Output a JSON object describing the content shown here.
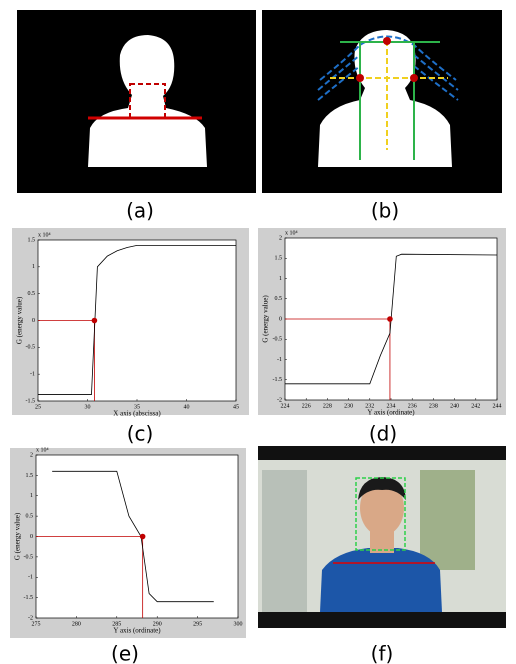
{
  "panel_labels": [
    "(a)",
    "(b)",
    "(c)",
    "(d)",
    "(e)",
    "(f)"
  ],
  "chart_data": [
    {
      "type": "line",
      "x_label": "X axis (abscissa)",
      "y_label": "G (energy value)",
      "exponent_label": "x 10⁴",
      "x": [
        25,
        30,
        30.4,
        31,
        32,
        33,
        34,
        35,
        40,
        45
      ],
      "series": [
        {
          "color": "#000000",
          "values": [
            -1.38,
            -1.38,
            -1.38,
            1.0,
            1.2,
            1.3,
            1.36,
            1.4,
            1.4,
            1.4
          ]
        }
      ],
      "marker": {
        "x": 30.7,
        "y": 0,
        "color": "#c00000"
      },
      "xlim": [
        25,
        45
      ],
      "xticks": [
        25,
        30,
        35,
        40,
        45
      ],
      "ylim": [
        -1.5,
        1.5
      ],
      "yticks": [
        -1.5,
        -1,
        -0.5,
        0,
        0.5,
        1,
        1.5
      ]
    },
    {
      "type": "line",
      "x_label": "Y axis (ordinate)",
      "y_label": "G (energy value)",
      "exponent_label": "x 10⁴",
      "x": [
        224,
        232,
        233,
        233.9,
        234.5,
        235,
        244
      ],
      "series": [
        {
          "color": "#000000",
          "values": [
            -1.6,
            -1.6,
            -0.9,
            -0.35,
            1.55,
            1.6,
            1.58
          ]
        }
      ],
      "marker": {
        "x": 233.9,
        "y": 0,
        "color": "#c00000"
      },
      "xlim": [
        224,
        244
      ],
      "xticks": [
        224,
        226,
        228,
        230,
        232,
        234,
        236,
        238,
        240,
        242,
        244
      ],
      "ylim": [
        -2,
        2
      ],
      "yticks": [
        -2,
        -1.5,
        -1,
        -0.5,
        0,
        0.5,
        1,
        1.5,
        2
      ]
    },
    {
      "type": "line",
      "x_label": "Y axis (ordinate)",
      "y_label": "G (energy value)",
      "exponent_label": "x 10⁴",
      "x": [
        277,
        285,
        286.5,
        288,
        289,
        290,
        297
      ],
      "series": [
        {
          "color": "#000000",
          "values": [
            1.6,
            1.6,
            0.5,
            0,
            -1.4,
            -1.6,
            -1.6
          ]
        }
      ],
      "marker": {
        "x": 288.2,
        "y": 0,
        "color": "#c00000"
      },
      "xlim": [
        275,
        300
      ],
      "xticks": [
        275,
        280,
        285,
        290,
        295,
        300
      ],
      "ylim": [
        -2,
        2
      ],
      "yticks": [
        -2,
        -1.5,
        -1,
        -0.5,
        0,
        0.5,
        1,
        1.5,
        2
      ]
    }
  ]
}
